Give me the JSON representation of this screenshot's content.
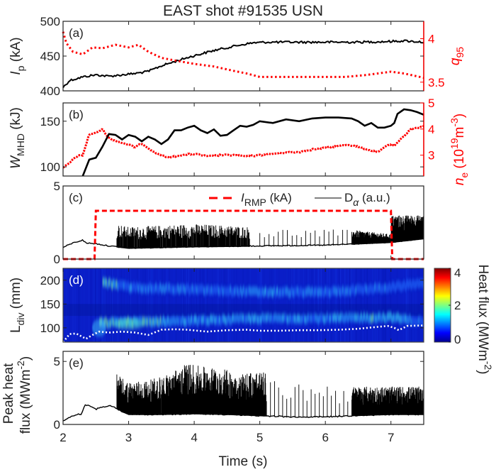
{
  "chart_data": {
    "type": "line",
    "title": "EAST shot #91535 USN",
    "xlabel": "Time (s)",
    "xlim": [
      2,
      7.5
    ],
    "xticks": [
      "2",
      "3",
      "4",
      "5",
      "6",
      "7"
    ],
    "panels": [
      {
        "label": "(a)",
        "ylabel": "I",
        "ylabel_sub": "p",
        "ylabel_unit": "(kA)",
        "ylim": [
          400,
          500
        ],
        "yticks": [
          "400",
          "450",
          "500"
        ],
        "right_ylabel": "q",
        "right_ylabel_sub": "95",
        "right_ylim": [
          3.4,
          4.2
        ],
        "right_yticks": [
          "3.5",
          "4"
        ],
        "series": [
          {
            "name": "Ip",
            "axis": "left",
            "style": "solid",
            "color": "#000000",
            "x": [
              2.0,
              2.1,
              2.3,
              2.5,
              2.7,
              2.9,
              3.1,
              3.3,
              3.5,
              3.7,
              3.9,
              4.1,
              4.3,
              4.5,
              4.7,
              4.9,
              5.1,
              5.5,
              6.0,
              6.5,
              7.0,
              7.2,
              7.5
            ],
            "y": [
              405,
              415,
              420,
              423,
              421,
              423,
              425,
              428,
              436,
              442,
              448,
              453,
              458,
              462,
              466,
              469,
              470,
              470,
              470,
              470,
              471,
              472,
              470
            ]
          },
          {
            "name": "q95",
            "axis": "right",
            "style": "dotted",
            "color": "#ff0000",
            "x": [
              2.0,
              2.05,
              2.15,
              2.3,
              2.45,
              2.6,
              2.8,
              3.0,
              3.15,
              3.3,
              3.5,
              3.7,
              4.0,
              4.3,
              4.6,
              4.8,
              5.0,
              5.5,
              6.0,
              6.3,
              6.6,
              6.8,
              7.0,
              7.2,
              7.5
            ],
            "y": [
              4.08,
              3.95,
              3.85,
              3.82,
              3.9,
              3.89,
              3.93,
              3.9,
              3.93,
              3.85,
              3.78,
              3.75,
              3.71,
              3.68,
              3.63,
              3.6,
              3.56,
              3.56,
              3.56,
              3.56,
              3.58,
              3.6,
              3.62,
              3.6,
              3.55
            ]
          }
        ]
      },
      {
        "label": "(b)",
        "ylabel": "W",
        "ylabel_sub": "MHD",
        "ylabel_unit": "(kJ)",
        "ylim": [
          90,
          170
        ],
        "yticks": [
          "100",
          "150"
        ],
        "right_ylabel": "n",
        "right_ylabel_sub": "e",
        "right_ylabel_unit": "(10",
        "right_ylabel_sup": "19",
        "right_ylabel_unit2": "m",
        "right_ylabel_sup2": "-3",
        "right_ylabel_end": ")",
        "right_ylim": [
          2.2,
          5
        ],
        "right_yticks": [
          "3",
          "4",
          "5"
        ],
        "series": [
          {
            "name": "WMHD",
            "axis": "left",
            "style": "solid",
            "color": "#000000",
            "x": [
              2.3,
              2.4,
              2.5,
              2.6,
              2.7,
              2.8,
              2.9,
              3.0,
              3.1,
              3.2,
              3.3,
              3.4,
              3.5,
              3.6,
              3.7,
              3.8,
              3.9,
              4.0,
              4.1,
              4.2,
              4.3,
              4.4,
              4.5,
              4.6,
              4.7,
              4.8,
              4.9,
              5.0,
              5.2,
              5.4,
              5.6,
              5.8,
              6.0,
              6.2,
              6.4,
              6.5,
              6.6,
              6.7,
              6.8,
              6.9,
              7.0,
              7.05,
              7.1,
              7.2,
              7.3,
              7.4,
              7.5
            ],
            "y": [
              90,
              108,
              110,
              122,
              136,
              135,
              130,
              135,
              133,
              128,
              133,
              130,
              125,
              130,
              140,
              140,
              143,
              145,
              140,
              137,
              141,
              134,
              135,
              140,
              145,
              144,
              146,
              150,
              148,
              152,
              150,
              153,
              154,
              154,
              153,
              150,
              145,
              148,
              143,
              143,
              145,
              148,
              158,
              163,
              162,
              160,
              157
            ]
          },
          {
            "name": "ne",
            "axis": "right",
            "style": "dotted",
            "color": "#ff0000",
            "x": [
              2.0,
              2.1,
              2.2,
              2.3,
              2.4,
              2.5,
              2.6,
              2.7,
              2.8,
              3.0,
              3.1,
              3.2,
              3.4,
              3.6,
              3.8,
              4.0,
              4.2,
              4.4,
              4.6,
              4.8,
              5.0,
              5.2,
              5.4,
              5.6,
              5.8,
              6.0,
              6.2,
              6.35,
              6.45,
              6.6,
              6.8,
              6.95,
              7.05,
              7.15,
              7.3,
              7.5
            ],
            "y": [
              2.5,
              2.7,
              2.95,
              3.0,
              3.8,
              3.85,
              4.0,
              3.65,
              3.55,
              3.4,
              3.3,
              3.45,
              3.1,
              2.9,
              3.0,
              3.05,
              2.95,
              3.0,
              3.0,
              2.95,
              3.0,
              3.05,
              3.1,
              3.12,
              3.22,
              3.28,
              3.35,
              3.4,
              3.35,
              3.25,
              3.1,
              3.4,
              3.35,
              3.6,
              4.0,
              4.1
            ]
          }
        ]
      },
      {
        "label": "(c)",
        "ylim": [
          0,
          5
        ],
        "yticks": [
          "0",
          "5"
        ],
        "legend": {
          "position": "top-right",
          "entries": [
            {
              "label_main": "I",
              "label_sub": "RMP",
              "label_unit": "(kA)",
              "style": "dashed",
              "color": "#ff0000"
            },
            {
              "label_main": "D",
              "label_sub": "α",
              "label_unit": "(a.u.)",
              "style": "solid",
              "color": "#000000"
            }
          ]
        },
        "series": [
          {
            "name": "IRMP",
            "style": "dashed",
            "color": "#ff0000",
            "x": [
              2.0,
              2.48,
              2.5,
              7.0,
              7.02,
              7.5
            ],
            "y": [
              0,
              0,
              3.3,
              3.3,
              0,
              0
            ]
          },
          {
            "name": "D_alpha_baseline",
            "style": "solid",
            "color": "#000000",
            "x": [
              2.0,
              2.15,
              2.3,
              2.35,
              2.5,
              2.7,
              2.8,
              3.0,
              3.5,
              4.0,
              5.0,
              6.0,
              6.5,
              7.0,
              7.5
            ],
            "y": [
              0.8,
              1.1,
              1.3,
              1.1,
              1.05,
              0.9,
              0.85,
              0.75,
              0.8,
              0.85,
              0.9,
              0.95,
              1.05,
              1.15,
              1.4
            ]
          },
          {
            "name": "D_alpha_elm_envelope",
            "style": "spikes",
            "color": "#000000",
            "x": [
              2.82,
              3.0,
              3.5,
              4.0,
              4.5,
              4.85,
              5.0,
              6.2,
              6.4,
              6.85,
              7.0,
              7.5
            ],
            "y": [
              2.4,
              2.2,
              2.3,
              2.4,
              2.3,
              2.2,
              2.1,
              2.1,
              2.0,
              1.7,
              3.0,
              3.0
            ]
          }
        ]
      },
      {
        "label": "(d)",
        "type": "heatmap",
        "ylabel": "L",
        "ylabel_sub": "div",
        "ylabel_unit": "(mm)",
        "ylim": [
          70,
          225
        ],
        "yticks": [
          "100",
          "150",
          "200"
        ],
        "colorbar": {
          "label": "Heat flux (MWm",
          "label_sup": "-2",
          "label_end": ")",
          "range": [
            0,
            4
          ],
          "ticks": [
            "0",
            "2",
            "4"
          ]
        },
        "strike_line": {
          "style": "dotted",
          "color": "#ffffff",
          "x": [
            2.0,
            2.1,
            2.2,
            2.35,
            2.45,
            2.55,
            2.7,
            2.9,
            3.1,
            3.3,
            3.5,
            3.7,
            3.9,
            4.2,
            4.5,
            4.8,
            5.0,
            5.3,
            5.6,
            5.9,
            6.2,
            6.5,
            6.8,
            6.95,
            7.05,
            7.12,
            7.25,
            7.5
          ],
          "y": [
            70,
            87,
            88,
            77,
            85,
            92,
            90,
            92,
            90,
            85,
            96,
            97,
            96,
            92,
            95,
            96,
            94,
            94,
            95,
            95,
            96,
            98,
            102,
            104,
            100,
            95,
            104,
            105
          ]
        },
        "bands": [
          {
            "x": [
              2.55,
              3.0,
              4.0,
              5.0,
              6.0,
              7.0,
              7.5
            ],
            "y": [
              110,
              112,
              115,
              120,
              120,
              122,
              112
            ],
            "intensity": [
              1.5,
              1.3,
              1.0,
              1.0,
              1.0,
              1.2,
              0.6
            ]
          },
          {
            "x": [
              2.6,
              3.0,
              4.0,
              5.0,
              6.0,
              7.0,
              7.5
            ],
            "y": [
              195,
              185,
              180,
              175,
              175,
              185,
              195
            ],
            "intensity": [
              1.4,
              0.9,
              0.7,
              0.9,
              0.8,
              0.6,
              0.3
            ]
          }
        ]
      },
      {
        "label": "(e)",
        "ylabel_line1": "Peak heat",
        "ylabel_line2": "flux (MWm",
        "ylabel_sup": "-2",
        "ylabel_end": ")",
        "ylim": [
          0,
          5.8
        ],
        "yticks": [
          "0",
          "5"
        ],
        "series": [
          {
            "name": "baseline",
            "style": "solid",
            "color": "#000000",
            "x": [
              2.0,
              2.1,
              2.2,
              2.28,
              2.33,
              2.4,
              2.5,
              2.6,
              2.7,
              2.8,
              3.0,
              3.5,
              4.0,
              4.5,
              5.0,
              5.5,
              6.0,
              6.4,
              7.0,
              7.5
            ],
            "y": [
              0.3,
              0.6,
              0.8,
              0.8,
              1.5,
              1.5,
              1.2,
              1.4,
              1.5,
              1.3,
              0.8,
              0.8,
              0.85,
              0.8,
              0.7,
              0.6,
              0.6,
              0.7,
              0.8,
              0.8
            ]
          },
          {
            "name": "peak_envelope",
            "style": "spikes",
            "color": "#000000",
            "x": [
              2.82,
              3.0,
              3.3,
              3.6,
              3.9,
              4.1,
              4.4,
              4.7,
              4.9,
              5.1,
              5.5,
              6.0,
              6.4,
              6.7,
              7.0,
              7.3,
              7.5
            ],
            "y": [
              4.0,
              3.4,
              3.5,
              4.0,
              4.9,
              4.6,
              4.5,
              4.0,
              4.3,
              4.1,
              3.5,
              3.5,
              3.1,
              3.0,
              3.2,
              3.1,
              3.0
            ]
          }
        ]
      }
    ]
  }
}
